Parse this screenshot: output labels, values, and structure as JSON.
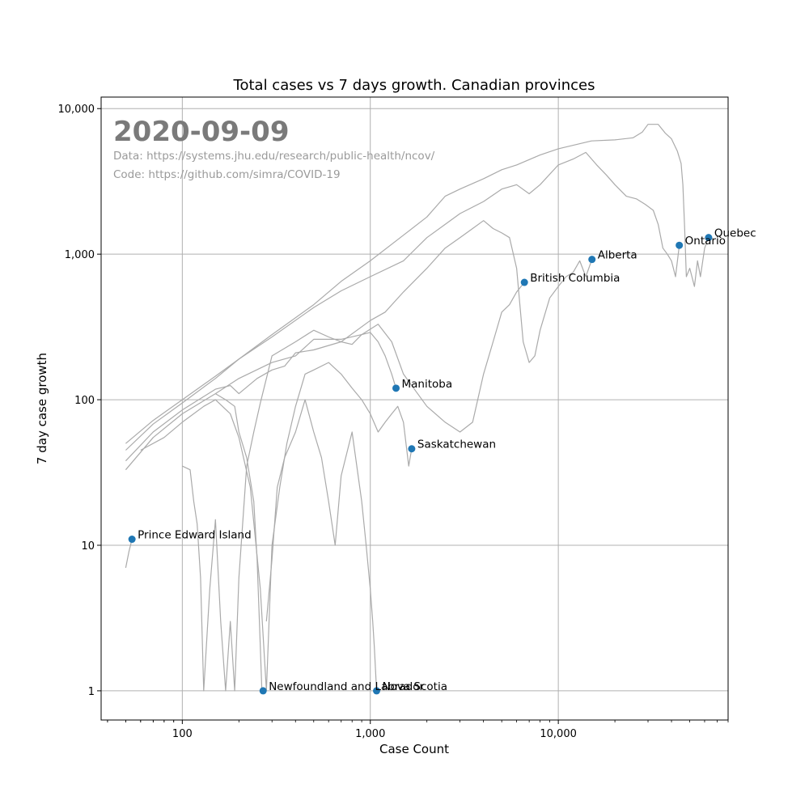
{
  "chart_data": {
    "type": "scatter",
    "title": "Total cases vs 7 days growth. Canadian provinces",
    "xlabel": "Case Count",
    "ylabel": "7 day case growth",
    "x_scale": "log",
    "y_scale": "log",
    "xlim": [
      37,
      80000
    ],
    "ylim": [
      0.63,
      12000
    ],
    "grid": true,
    "x_ticks": [
      {
        "value": 100,
        "label": "100"
      },
      {
        "value": 1000,
        "label": "1,000"
      },
      {
        "value": 10000,
        "label": "10,000"
      }
    ],
    "y_ticks": [
      {
        "value": 1,
        "label": "1"
      },
      {
        "value": 10,
        "label": "10"
      },
      {
        "value": 100,
        "label": "100"
      },
      {
        "value": 1000,
        "label": "1,000"
      },
      {
        "value": 10000,
        "label": "10,000"
      }
    ],
    "annotations": {
      "date": "2020-09-09",
      "data_source": "Data: https://systems.jhu.edu/research/public-health/ncov/",
      "code_source": "Code: https://github.com/simra/COVID-19"
    },
    "point_color": "#1f77b4",
    "line_color": "#aaaaaa",
    "points": [
      {
        "label": "Quebec",
        "x": 63000,
        "y": 1300
      },
      {
        "label": "Ontario",
        "x": 44000,
        "y": 1150
      },
      {
        "label": "Alberta",
        "x": 15100,
        "y": 920
      },
      {
        "label": "British Columbia",
        "x": 6600,
        "y": 640
      },
      {
        "label": "Manitoba",
        "x": 1370,
        "y": 120
      },
      {
        "label": "Saskatchewan",
        "x": 1660,
        "y": 46
      },
      {
        "label": "Prince Edward Island",
        "x": 54,
        "y": 11
      },
      {
        "label": "Newfoundland and Labrador",
        "x": 269,
        "y": 1
      },
      {
        "label": "Nova Scotia",
        "x": 1080,
        "y": 1
      }
    ],
    "trajectories": [
      {
        "points": [
          [
            50,
            45
          ],
          [
            70,
            68
          ],
          [
            100,
            95
          ],
          [
            150,
            140
          ],
          [
            200,
            190
          ],
          [
            300,
            280
          ],
          [
            500,
            450
          ],
          [
            700,
            650
          ],
          [
            1000,
            900
          ],
          [
            1500,
            1350
          ],
          [
            2000,
            1800
          ],
          [
            2500,
            2500
          ],
          [
            3000,
            2800
          ],
          [
            4000,
            3300
          ],
          [
            5000,
            3800
          ],
          [
            6000,
            4100
          ],
          [
            8000,
            4800
          ],
          [
            10000,
            5300
          ],
          [
            12000,
            5600
          ],
          [
            15000,
            6000
          ],
          [
            20000,
            6100
          ],
          [
            25000,
            6300
          ],
          [
            28000,
            6900
          ],
          [
            30000,
            7800
          ],
          [
            34000,
            7800
          ],
          [
            37000,
            6800
          ],
          [
            40000,
            6200
          ],
          [
            43000,
            5100
          ],
          [
            45000,
            4200
          ],
          [
            46000,
            3000
          ],
          [
            47000,
            1500
          ],
          [
            48000,
            700
          ],
          [
            50000,
            800
          ],
          [
            53000,
            600
          ],
          [
            55000,
            900
          ],
          [
            57000,
            700
          ],
          [
            60000,
            1100
          ],
          [
            63000,
            1300
          ]
        ]
      },
      {
        "points": [
          [
            50,
            50
          ],
          [
            70,
            72
          ],
          [
            100,
            100
          ],
          [
            150,
            145
          ],
          [
            200,
            190
          ],
          [
            300,
            270
          ],
          [
            500,
            430
          ],
          [
            700,
            560
          ],
          [
            1000,
            700
          ],
          [
            1500,
            900
          ],
          [
            2000,
            1300
          ],
          [
            2500,
            1600
          ],
          [
            3000,
            1900
          ],
          [
            4000,
            2300
          ],
          [
            5000,
            2800
          ],
          [
            6000,
            3000
          ],
          [
            7000,
            2600
          ],
          [
            8000,
            3000
          ],
          [
            10000,
            4100
          ],
          [
            12000,
            4500
          ],
          [
            14000,
            5000
          ],
          [
            16000,
            4100
          ],
          [
            18000,
            3500
          ],
          [
            20000,
            3000
          ],
          [
            23000,
            2500
          ],
          [
            26000,
            2400
          ],
          [
            29000,
            2200
          ],
          [
            32000,
            2000
          ],
          [
            34000,
            1600
          ],
          [
            36000,
            1100
          ],
          [
            38000,
            1000
          ],
          [
            40000,
            900
          ],
          [
            42000,
            700
          ],
          [
            44000,
            1150
          ]
        ]
      },
      {
        "points": [
          [
            50,
            38
          ],
          [
            70,
            60
          ],
          [
            100,
            85
          ],
          [
            150,
            118
          ],
          [
            180,
            125
          ],
          [
            200,
            110
          ],
          [
            250,
            140
          ],
          [
            300,
            160
          ],
          [
            350,
            170
          ],
          [
            400,
            210
          ],
          [
            500,
            220
          ],
          [
            700,
            250
          ],
          [
            1000,
            350
          ],
          [
            1200,
            400
          ],
          [
            1500,
            550
          ],
          [
            2000,
            800
          ],
          [
            2500,
            1100
          ],
          [
            3000,
            1300
          ],
          [
            3500,
            1500
          ],
          [
            4000,
            1700
          ],
          [
            4500,
            1500
          ],
          [
            5000,
            1400
          ],
          [
            5500,
            1300
          ],
          [
            6000,
            800
          ],
          [
            6500,
            250
          ],
          [
            7000,
            180
          ],
          [
            7500,
            200
          ],
          [
            8000,
            300
          ],
          [
            9000,
            500
          ],
          [
            10000,
            600
          ],
          [
            11000,
            700
          ],
          [
            12000,
            750
          ],
          [
            13000,
            900
          ],
          [
            14000,
            700
          ],
          [
            15100,
            920
          ]
        ]
      },
      {
        "points": [
          [
            50,
            33
          ],
          [
            70,
            55
          ],
          [
            100,
            80
          ],
          [
            150,
            110
          ],
          [
            200,
            140
          ],
          [
            300,
            180
          ],
          [
            400,
            200
          ],
          [
            500,
            260
          ],
          [
            700,
            260
          ],
          [
            900,
            280
          ],
          [
            1100,
            330
          ],
          [
            1300,
            250
          ],
          [
            1500,
            150
          ],
          [
            1700,
            120
          ],
          [
            2000,
            90
          ],
          [
            2500,
            70
          ],
          [
            3000,
            60
          ],
          [
            3500,
            70
          ],
          [
            4000,
            150
          ],
          [
            4500,
            250
          ],
          [
            5000,
            400
          ],
          [
            5500,
            450
          ],
          [
            6000,
            550
          ],
          [
            6600,
            640
          ]
        ]
      },
      {
        "points": [
          [
            100,
            35
          ],
          [
            110,
            33
          ],
          [
            115,
            20
          ],
          [
            120,
            14
          ],
          [
            125,
            6
          ],
          [
            130,
            1
          ],
          [
            140,
            5
          ],
          [
            150,
            15
          ],
          [
            160,
            3
          ],
          [
            170,
            1
          ],
          [
            180,
            3
          ],
          [
            190,
            1
          ],
          [
            200,
            6
          ],
          [
            220,
            35
          ],
          [
            240,
            60
          ],
          [
            260,
            95
          ],
          [
            280,
            140
          ],
          [
            300,
            200
          ],
          [
            400,
            250
          ],
          [
            500,
            300
          ],
          [
            600,
            270
          ],
          [
            700,
            250
          ],
          [
            800,
            240
          ],
          [
            900,
            280
          ],
          [
            1000,
            290
          ],
          [
            1100,
            250
          ],
          [
            1200,
            200
          ],
          [
            1300,
            150
          ],
          [
            1370,
            120
          ]
        ]
      },
      {
        "points": [
          [
            60,
            45
          ],
          [
            80,
            55
          ],
          [
            100,
            70
          ],
          [
            130,
            90
          ],
          [
            150,
            100
          ],
          [
            180,
            80
          ],
          [
            200,
            55
          ],
          [
            230,
            25
          ],
          [
            260,
            5
          ],
          [
            280,
            1
          ],
          [
            300,
            10
          ],
          [
            330,
            25
          ],
          [
            360,
            50
          ],
          [
            400,
            90
          ],
          [
            450,
            150
          ],
          [
            500,
            160
          ],
          [
            600,
            180
          ],
          [
            700,
            150
          ],
          [
            800,
            120
          ],
          [
            900,
            100
          ],
          [
            1000,
            80
          ],
          [
            1100,
            60
          ],
          [
            1200,
            70
          ],
          [
            1300,
            80
          ],
          [
            1400,
            90
          ],
          [
            1500,
            70
          ],
          [
            1600,
            35
          ],
          [
            1660,
            46
          ]
        ]
      },
      {
        "points": [
          [
            50,
            7
          ],
          [
            52,
            9
          ],
          [
            54,
            11
          ]
        ]
      },
      {
        "points": [
          [
            150,
            110
          ],
          [
            170,
            100
          ],
          [
            190,
            90
          ],
          [
            200,
            60
          ],
          [
            220,
            40
          ],
          [
            240,
            20
          ],
          [
            250,
            8
          ],
          [
            260,
            2
          ],
          [
            265,
            1
          ],
          [
            269,
            1
          ]
        ]
      },
      {
        "points": [
          [
            280,
            3
          ],
          [
            300,
            8
          ],
          [
            320,
            25
          ],
          [
            350,
            40
          ],
          [
            400,
            60
          ],
          [
            450,
            100
          ],
          [
            500,
            60
          ],
          [
            550,
            40
          ],
          [
            600,
            20
          ],
          [
            650,
            10
          ],
          [
            700,
            30
          ],
          [
            800,
            60
          ],
          [
            900,
            20
          ],
          [
            950,
            10
          ],
          [
            1000,
            5
          ],
          [
            1030,
            3
          ],
          [
            1050,
            2
          ],
          [
            1080,
            1
          ]
        ]
      }
    ]
  }
}
